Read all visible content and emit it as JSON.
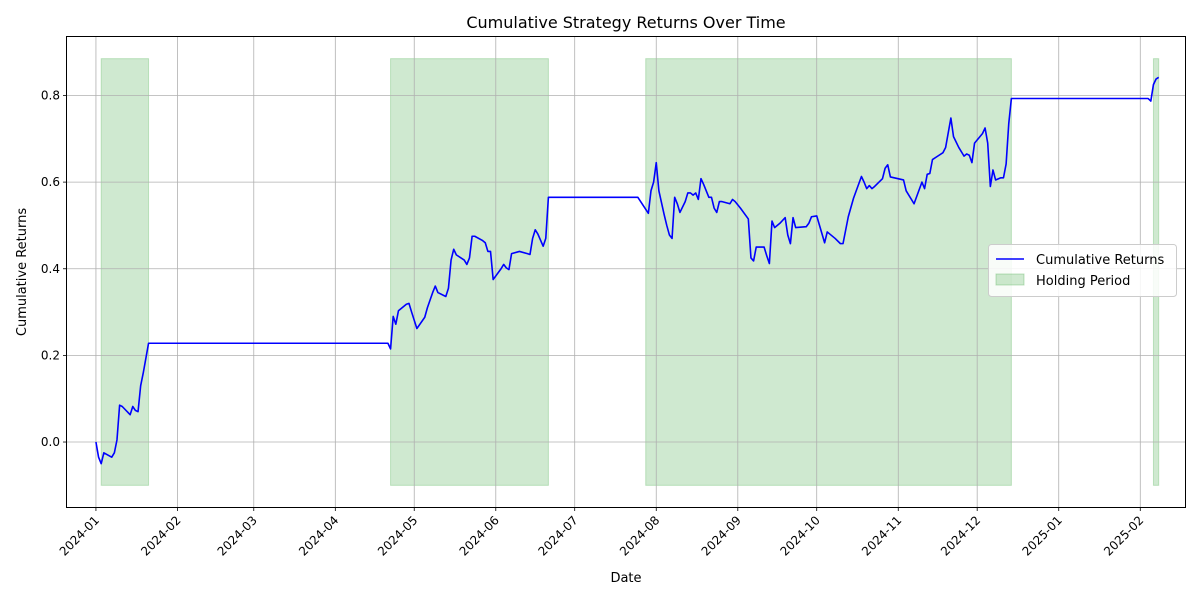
{
  "chart_data": {
    "type": "line",
    "title": "Cumulative Strategy Returns Over Time",
    "xlabel": "Date",
    "ylabel": "Cumulative Returns",
    "xlim": [
      "2023-12-21",
      "2025-02-18"
    ],
    "ylim": [
      -0.15,
      0.935
    ],
    "y_ticks": [
      0.0,
      0.2,
      0.4,
      0.6,
      0.8
    ],
    "y_tick_labels": [
      "0.0",
      "0.2",
      "0.4",
      "0.6",
      "0.8"
    ],
    "x_ticks": [
      "2024-01-01",
      "2024-02-01",
      "2024-03-01",
      "2024-04-01",
      "2024-05-01",
      "2024-06-01",
      "2024-07-01",
      "2024-08-01",
      "2024-09-01",
      "2024-10-01",
      "2024-11-01",
      "2024-12-01",
      "2025-01-01",
      "2025-02-01"
    ],
    "x_tick_labels": [
      "2024-01",
      "2024-02",
      "2024-03",
      "2024-04",
      "2024-05",
      "2024-06",
      "2024-07",
      "2024-08",
      "2024-09",
      "2024-10",
      "2024-11",
      "2024-12",
      "2025-01",
      "2025-02"
    ],
    "grid": true,
    "legend": "center-right",
    "series": [
      {
        "name": "Cumulative Returns",
        "color": "#0000ff",
        "points": [
          [
            "2024-01-01",
            0.0
          ],
          [
            "2024-01-02",
            -0.035
          ],
          [
            "2024-01-03",
            -0.05
          ],
          [
            "2024-01-04",
            -0.025
          ],
          [
            "2024-01-07",
            -0.035
          ],
          [
            "2024-01-08",
            -0.025
          ],
          [
            "2024-01-09",
            0.005
          ],
          [
            "2024-01-10",
            0.085
          ],
          [
            "2024-01-11",
            0.082
          ],
          [
            "2024-01-14",
            0.063
          ],
          [
            "2024-01-15",
            0.082
          ],
          [
            "2024-01-16",
            0.073
          ],
          [
            "2024-01-17",
            0.07
          ],
          [
            "2024-01-18",
            0.13
          ],
          [
            "2024-01-19",
            0.16
          ],
          [
            "2024-01-21",
            0.228
          ],
          [
            "2024-04-21",
            0.228
          ],
          [
            "2024-04-22",
            0.215
          ],
          [
            "2024-04-23",
            0.29
          ],
          [
            "2024-04-24",
            0.272
          ],
          [
            "2024-04-25",
            0.303
          ],
          [
            "2024-04-28",
            0.318
          ],
          [
            "2024-04-29",
            0.32
          ],
          [
            "2024-04-30",
            0.3
          ],
          [
            "2024-05-02",
            0.262
          ],
          [
            "2024-05-05",
            0.288
          ],
          [
            "2024-05-06",
            0.31
          ],
          [
            "2024-05-08",
            0.345
          ],
          [
            "2024-05-09",
            0.36
          ],
          [
            "2024-05-10",
            0.345
          ],
          [
            "2024-05-13",
            0.336
          ],
          [
            "2024-05-14",
            0.355
          ],
          [
            "2024-05-15",
            0.42
          ],
          [
            "2024-05-16",
            0.445
          ],
          [
            "2024-05-17",
            0.432
          ],
          [
            "2024-05-20",
            0.42
          ],
          [
            "2024-05-21",
            0.41
          ],
          [
            "2024-05-22",
            0.425
          ],
          [
            "2024-05-23",
            0.475
          ],
          [
            "2024-05-24",
            0.475
          ],
          [
            "2024-05-27",
            0.465
          ],
          [
            "2024-05-28",
            0.46
          ],
          [
            "2024-05-29",
            0.44
          ],
          [
            "2024-05-30",
            0.44
          ],
          [
            "2024-05-31",
            0.375
          ],
          [
            "2024-06-03",
            0.4
          ],
          [
            "2024-06-04",
            0.41
          ],
          [
            "2024-06-05",
            0.402
          ],
          [
            "2024-06-06",
            0.398
          ],
          [
            "2024-06-07",
            0.435
          ],
          [
            "2024-06-10",
            0.44
          ],
          [
            "2024-06-13",
            0.435
          ],
          [
            "2024-06-14",
            0.433
          ],
          [
            "2024-06-15",
            0.47
          ],
          [
            "2024-06-16",
            0.49
          ],
          [
            "2024-06-17",
            0.48
          ],
          [
            "2024-06-19",
            0.452
          ],
          [
            "2024-06-20",
            0.47
          ],
          [
            "2024-06-21",
            0.565
          ],
          [
            "2024-07-25",
            0.565
          ],
          [
            "2024-07-29",
            0.528
          ],
          [
            "2024-07-30",
            0.58
          ],
          [
            "2024-07-31",
            0.6
          ],
          [
            "2024-08-01",
            0.645
          ],
          [
            "2024-08-02",
            0.58
          ],
          [
            "2024-08-04",
            0.525
          ],
          [
            "2024-08-05",
            0.5
          ],
          [
            "2024-08-06",
            0.478
          ],
          [
            "2024-08-07",
            0.47
          ],
          [
            "2024-08-08",
            0.565
          ],
          [
            "2024-08-09",
            0.55
          ],
          [
            "2024-08-10",
            0.53
          ],
          [
            "2024-08-12",
            0.555
          ],
          [
            "2024-08-13",
            0.575
          ],
          [
            "2024-08-14",
            0.575
          ],
          [
            "2024-08-15",
            0.57
          ],
          [
            "2024-08-16",
            0.575
          ],
          [
            "2024-08-17",
            0.56
          ],
          [
            "2024-08-18",
            0.608
          ],
          [
            "2024-08-19",
            0.595
          ],
          [
            "2024-08-21",
            0.565
          ],
          [
            "2024-08-22",
            0.565
          ],
          [
            "2024-08-23",
            0.54
          ],
          [
            "2024-08-24",
            0.53
          ],
          [
            "2024-08-25",
            0.555
          ],
          [
            "2024-08-26",
            0.555
          ],
          [
            "2024-08-29",
            0.55
          ],
          [
            "2024-08-30",
            0.56
          ],
          [
            "2024-08-31",
            0.555
          ],
          [
            "2024-09-02",
            0.54
          ],
          [
            "2024-09-05",
            0.515
          ],
          [
            "2024-09-06",
            0.425
          ],
          [
            "2024-09-07",
            0.418
          ],
          [
            "2024-09-08",
            0.45
          ],
          [
            "2024-09-11",
            0.45
          ],
          [
            "2024-09-12",
            0.43
          ],
          [
            "2024-09-13",
            0.412
          ],
          [
            "2024-09-14",
            0.51
          ],
          [
            "2024-09-15",
            0.495
          ],
          [
            "2024-09-17",
            0.505
          ],
          [
            "2024-09-19",
            0.518
          ],
          [
            "2024-09-20",
            0.478
          ],
          [
            "2024-09-21",
            0.458
          ],
          [
            "2024-09-22",
            0.518
          ],
          [
            "2024-09-23",
            0.495
          ],
          [
            "2024-09-27",
            0.497
          ],
          [
            "2024-09-28",
            0.505
          ],
          [
            "2024-09-29",
            0.52
          ],
          [
            "2024-10-01",
            0.522
          ],
          [
            "2024-10-04",
            0.46
          ],
          [
            "2024-10-05",
            0.485
          ],
          [
            "2024-10-08",
            0.47
          ],
          [
            "2024-10-10",
            0.458
          ],
          [
            "2024-10-11",
            0.458
          ],
          [
            "2024-10-13",
            0.52
          ],
          [
            "2024-10-15",
            0.563
          ],
          [
            "2024-10-18",
            0.613
          ],
          [
            "2024-10-19",
            0.6
          ],
          [
            "2024-10-20",
            0.585
          ],
          [
            "2024-10-21",
            0.592
          ],
          [
            "2024-10-22",
            0.585
          ],
          [
            "2024-10-23",
            0.59
          ],
          [
            "2024-10-26",
            0.608
          ],
          [
            "2024-10-27",
            0.632
          ],
          [
            "2024-10-28",
            0.64
          ],
          [
            "2024-10-29",
            0.612
          ],
          [
            "2024-11-03",
            0.605
          ],
          [
            "2024-11-04",
            0.58
          ],
          [
            "2024-11-07",
            0.55
          ],
          [
            "2024-11-10",
            0.6
          ],
          [
            "2024-11-11",
            0.585
          ],
          [
            "2024-11-12",
            0.618
          ],
          [
            "2024-11-13",
            0.62
          ],
          [
            "2024-11-14",
            0.652
          ],
          [
            "2024-11-16",
            0.66
          ],
          [
            "2024-11-18",
            0.668
          ],
          [
            "2024-11-19",
            0.68
          ],
          [
            "2024-11-21",
            0.748
          ],
          [
            "2024-11-22",
            0.705
          ],
          [
            "2024-11-24",
            0.68
          ],
          [
            "2024-11-26",
            0.66
          ],
          [
            "2024-11-27",
            0.665
          ],
          [
            "2024-11-28",
            0.662
          ],
          [
            "2024-11-29",
            0.645
          ],
          [
            "2024-11-30",
            0.69
          ],
          [
            "2024-12-03",
            0.712
          ],
          [
            "2024-12-04",
            0.725
          ],
          [
            "2024-12-05",
            0.69
          ],
          [
            "2024-12-06",
            0.59
          ],
          [
            "2024-12-07",
            0.628
          ],
          [
            "2024-12-08",
            0.605
          ],
          [
            "2024-12-10",
            0.61
          ],
          [
            "2024-12-11",
            0.61
          ],
          [
            "2024-12-12",
            0.642
          ],
          [
            "2024-12-13",
            0.735
          ],
          [
            "2024-12-14",
            0.793
          ],
          [
            "2025-02-04",
            0.793
          ],
          [
            "2025-02-05",
            0.787
          ],
          [
            "2025-02-06",
            0.825
          ],
          [
            "2025-02-07",
            0.838
          ],
          [
            "2025-02-08",
            0.842
          ]
        ]
      },
      {
        "name": "Holding Period",
        "type": "area",
        "color": "#4caf50",
        "opacity": 0.27,
        "y_range": [
          -0.1,
          0.885
        ],
        "intervals": [
          [
            "2024-01-03",
            "2024-01-21"
          ],
          [
            "2024-04-22",
            "2024-06-21"
          ],
          [
            "2024-07-28",
            "2024-12-14"
          ],
          [
            "2025-02-06",
            "2025-02-08"
          ]
        ]
      }
    ]
  }
}
